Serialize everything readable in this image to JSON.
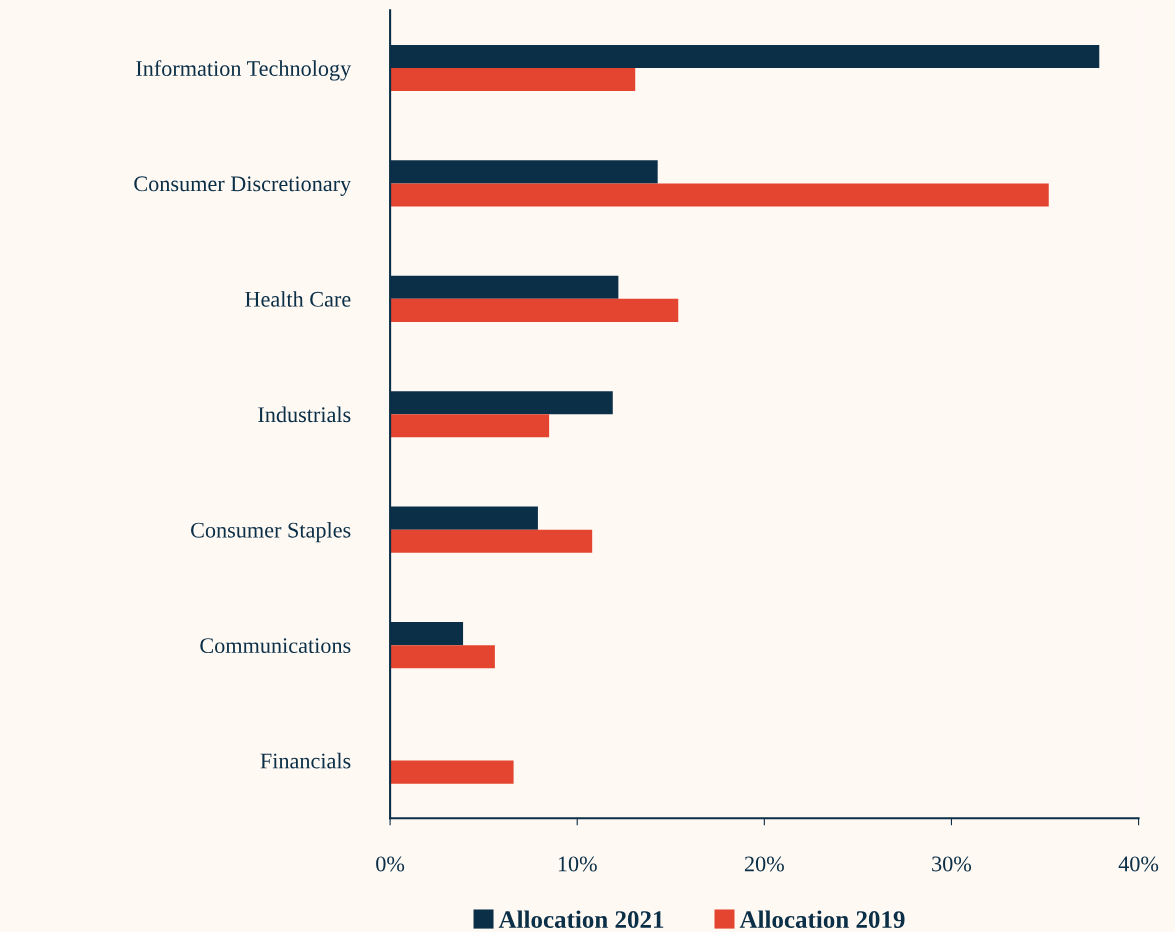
{
  "chart_data": {
    "type": "bar",
    "orientation": "horizontal",
    "categories": [
      "Information Technology",
      "Consumer Discretionary",
      "Health Care",
      "Industrials",
      "Consumer Staples",
      "Communications",
      "Financials"
    ],
    "series": [
      {
        "name": "Allocation 2021",
        "color": "#0b2f47",
        "values": [
          37.9,
          14.3,
          12.2,
          11.9,
          7.9,
          3.9,
          0
        ]
      },
      {
        "name": "Allocation 2019",
        "color": "#e34530",
        "values": [
          13.1,
          35.2,
          15.4,
          8.5,
          10.8,
          5.6,
          6.6
        ]
      }
    ],
    "xlim": [
      0,
      40
    ],
    "xticks": [
      {
        "value": 0,
        "label": "0%"
      },
      {
        "value": 10,
        "label": "10%"
      },
      {
        "value": 20,
        "label": "20%"
      },
      {
        "value": 30,
        "label": "30%"
      },
      {
        "value": 40,
        "label": "40%"
      }
    ],
    "grid": false,
    "legend": "bottom"
  }
}
